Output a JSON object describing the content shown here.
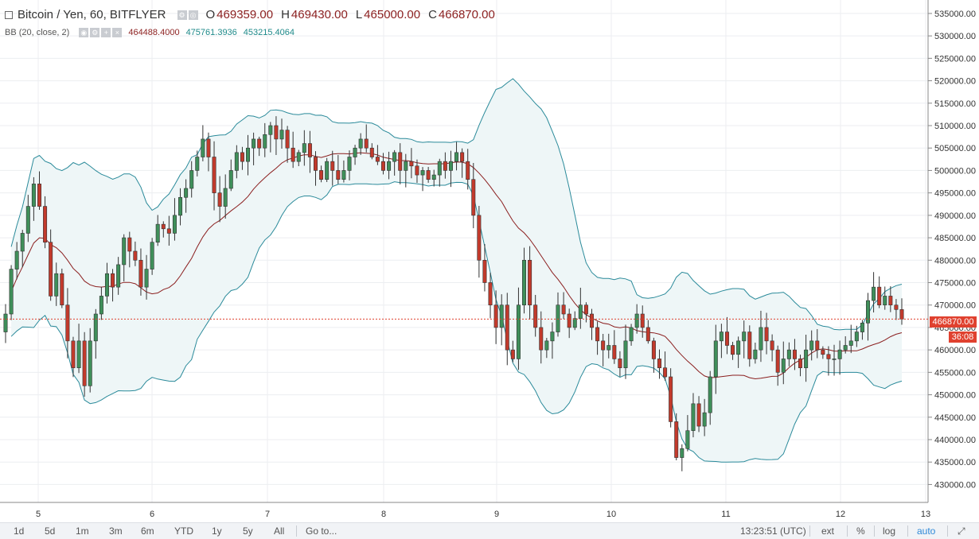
{
  "header": {
    "symbol": "Bitcoin / Yen, 60, BITFLYER",
    "open_label": "O",
    "open": "469359.00",
    "high_label": "H",
    "high": "469430.00",
    "low_label": "L",
    "low": "465000.00",
    "close_label": "C",
    "close": "466870.00"
  },
  "indicator": {
    "name": "BB (20, close, 2)",
    "middle": "464488.4000",
    "upper": "475761.3936",
    "lower": "453215.4064"
  },
  "price_tag": {
    "value": "466870.00",
    "countdown": "36:08"
  },
  "colors": {
    "up": "#3f8f5a",
    "down": "#c23a2c",
    "band": "#2a8a9a",
    "basis": "#8b1f1f",
    "fill": "#eef6f7",
    "grid": "#eceef1",
    "last": "#e0412f"
  },
  "toolbar": {
    "ranges": [
      "1d",
      "5d",
      "1m",
      "3m",
      "6m",
      "YTD",
      "1y",
      "5y",
      "All"
    ],
    "goto": "Go to...",
    "time": "13:23:51 (UTC)",
    "ext": "ext",
    "pct": "%",
    "log": "log",
    "auto": "auto"
  },
  "chart_data": {
    "type": "candlestick",
    "y_ticks": [
      430000,
      435000,
      440000,
      445000,
      450000,
      455000,
      460000,
      465000,
      470000,
      475000,
      480000,
      485000,
      490000,
      495000,
      500000,
      505000,
      510000,
      515000,
      520000,
      525000,
      530000,
      535000
    ],
    "ylim": [
      426000,
      538000
    ],
    "x_ticks": [
      "5",
      "6",
      "7",
      "8",
      "9",
      "10",
      "11",
      "12",
      "13"
    ],
    "last_price": 466870,
    "closes": [
      468000,
      478000,
      482000,
      486000,
      492000,
      497000,
      492000,
      484000,
      472000,
      477000,
      470000,
      462000,
      456000,
      462000,
      452000,
      462000,
      468000,
      472000,
      477000,
      474000,
      479000,
      485000,
      482000,
      480000,
      474000,
      478000,
      484000,
      488000,
      487000,
      486000,
      490000,
      494000,
      496000,
      500000,
      503000,
      507000,
      503000,
      495000,
      492000,
      496000,
      500000,
      504000,
      502000,
      505000,
      507000,
      505000,
      508000,
      510000,
      507000,
      509000,
      505000,
      502000,
      504000,
      506000,
      503000,
      500000,
      498000,
      502000,
      500000,
      498000,
      500000,
      503000,
      505000,
      507000,
      505000,
      503000,
      502000,
      500000,
      502000,
      504000,
      500000,
      502000,
      501000,
      499000,
      500000,
      498000,
      499000,
      502000,
      500000,
      502000,
      504000,
      502000,
      498000,
      490000,
      480000,
      475000,
      470000,
      465000,
      470000,
      460000,
      458000,
      470000,
      480000,
      470000,
      465000,
      460000,
      462000,
      464000,
      470000,
      468000,
      465000,
      467000,
      470000,
      468000,
      465000,
      462000,
      460000,
      461000,
      458000,
      456000,
      462000,
      465000,
      468000,
      465000,
      462000,
      458000,
      456000,
      454000,
      444000,
      436000,
      438000,
      442000,
      448000,
      443000,
      446000,
      454000,
      462000,
      464000,
      461000,
      459000,
      462000,
      464000,
      458000,
      460000,
      465000,
      462000,
      460000,
      455000,
      458000,
      460000,
      458000,
      456000,
      460000,
      462000,
      460000,
      459000,
      458000,
      458000,
      460000,
      461000,
      462000,
      464000,
      466000,
      471000,
      474000,
      470000,
      472000,
      470000,
      469000,
      466870
    ]
  }
}
